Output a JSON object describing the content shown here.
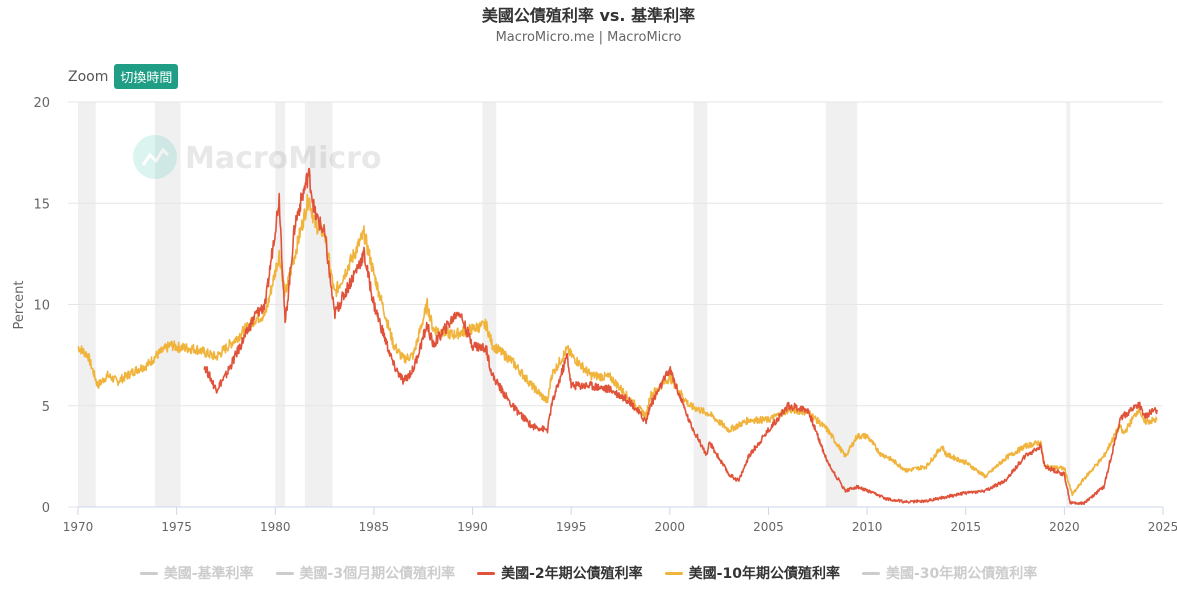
{
  "header": {
    "title": "美國公債殖利率 vs. 基準利率",
    "subtitle": "MacroMicro.me | MacroMicro"
  },
  "zoom": {
    "label": "Zoom",
    "button": "切換時間"
  },
  "watermark": {
    "text": "MacroMicro"
  },
  "colors": {
    "accent": "#1f9e85",
    "recession": "#f0f0f0"
  },
  "chart_data": {
    "type": "line",
    "ylabel": "Percent",
    "xlim": [
      1970,
      2025
    ],
    "ylim": [
      0,
      20
    ],
    "yticks": [
      0,
      5,
      10,
      15,
      20
    ],
    "xticks": [
      1970,
      1975,
      1980,
      1985,
      1990,
      1995,
      2000,
      2005,
      2010,
      2015,
      2020,
      2025
    ],
    "grid": true,
    "legend_position": "bottom",
    "recessions": [
      [
        1970.0,
        1970.9
      ],
      [
        1973.9,
        1975.2
      ],
      [
        1980.0,
        1980.5
      ],
      [
        1981.5,
        1982.9
      ],
      [
        1990.5,
        1991.2
      ],
      [
        2001.2,
        2001.9
      ],
      [
        2007.9,
        2009.5
      ],
      [
        2020.1,
        2020.3
      ]
    ],
    "legend": [
      {
        "name": "美國-基準利率",
        "color": "#cccccc",
        "visible": false
      },
      {
        "name": "美國-3個月期公債殖利率",
        "color": "#cccccc",
        "visible": false
      },
      {
        "name": "美國-2年期公債殖利率",
        "color": "#e0533a",
        "visible": true
      },
      {
        "name": "美國-10年期公債殖利率",
        "color": "#f0b43c",
        "visible": true
      },
      {
        "name": "美國-30年期公債殖利率",
        "color": "#cccccc",
        "visible": false
      }
    ],
    "series": [
      {
        "name": "美國-10年期公債殖利率",
        "color": "#f0b43c",
        "x": [
          1970,
          1970.5,
          1971,
          1971.5,
          1972,
          1973,
          1973.5,
          1974,
          1974.7,
          1975,
          1976,
          1977,
          1978,
          1979,
          1979.5,
          1980.2,
          1980.5,
          1981.0,
          1981.7,
          1982.0,
          1982.5,
          1983.0,
          1983.5,
          1984.5,
          1985,
          1986,
          1986.5,
          1987,
          1987.7,
          1988,
          1989,
          1990,
          1990.7,
          1991,
          1992,
          1993,
          1993.8,
          1994,
          1994.8,
          1995,
          1996,
          1997,
          1998,
          1998.8,
          1999,
          2000,
          2001,
          2002,
          2003,
          2004,
          2005,
          2006,
          2007,
          2008,
          2008.9,
          2009.5,
          2010,
          2010.7,
          2011,
          2012,
          2013,
          2013.8,
          2014,
          2015,
          2016,
          2017,
          2018,
          2018.8,
          2019,
          2020,
          2020.4,
          2021,
          2022,
          2022.8,
          2023,
          2023.8,
          2024,
          2024.7
        ],
        "values": [
          7.9,
          7.5,
          6.0,
          6.5,
          6.2,
          6.8,
          7.0,
          7.5,
          8.0,
          7.9,
          7.8,
          7.4,
          8.3,
          9.3,
          9.5,
          12.5,
          10.5,
          12.5,
          15.3,
          14.0,
          13.5,
          10.5,
          11.5,
          13.5,
          11.5,
          8.0,
          7.3,
          7.5,
          10.0,
          8.8,
          8.5,
          8.8,
          9.0,
          8.0,
          7.2,
          6.0,
          5.2,
          6.5,
          7.8,
          7.5,
          6.5,
          6.4,
          5.3,
          4.5,
          5.5,
          6.4,
          5.0,
          4.6,
          3.8,
          4.3,
          4.3,
          4.8,
          4.7,
          3.8,
          2.5,
          3.5,
          3.5,
          2.6,
          2.5,
          1.8,
          2.0,
          3.0,
          2.6,
          2.2,
          1.5,
          2.4,
          3.0,
          3.2,
          2.0,
          1.9,
          0.6,
          1.4,
          2.5,
          4.0,
          3.6,
          4.9,
          4.2,
          4.3
        ]
      },
      {
        "name": "美國-2年期公債殖利率",
        "color": "#e0533a",
        "x": [
          1976.4,
          1977.0,
          1977.5,
          1978,
          1979,
          1979.5,
          1980.2,
          1980.5,
          1981.0,
          1981.7,
          1982.0,
          1982.5,
          1983.0,
          1983.5,
          1984.5,
          1985,
          1986,
          1986.5,
          1987,
          1987.7,
          1988,
          1989.3,
          1990,
          1990.7,
          1991,
          1992,
          1993,
          1993.8,
          1994,
          1994.8,
          1995,
          1996,
          1997,
          1998,
          1998.8,
          1999,
          2000,
          2001,
          2001.9,
          2002,
          2003,
          2003.5,
          2004,
          2005,
          2006,
          2007,
          2008,
          2008.9,
          2009.5,
          2010,
          2011,
          2012,
          2013,
          2014,
          2015,
          2016,
          2017,
          2018,
          2018.8,
          2019,
          2020,
          2020.3,
          2021,
          2022,
          2022.8,
          2023,
          2023.8,
          2024,
          2024.7
        ],
        "values": [
          7.0,
          5.8,
          6.5,
          7.5,
          9.5,
          10.0,
          15.3,
          9.0,
          14.0,
          16.5,
          14.5,
          13.5,
          9.5,
          10.5,
          12.5,
          10.0,
          7.0,
          6.2,
          6.8,
          9.0,
          8.0,
          9.7,
          8.0,
          7.8,
          6.5,
          5.0,
          4.0,
          3.8,
          5.0,
          7.5,
          6.0,
          6.0,
          5.8,
          5.2,
          4.2,
          5.0,
          6.8,
          4.2,
          2.5,
          3.2,
          1.6,
          1.3,
          2.5,
          3.8,
          5.0,
          4.8,
          2.2,
          0.8,
          1.0,
          0.8,
          0.4,
          0.25,
          0.3,
          0.5,
          0.7,
          0.8,
          1.3,
          2.5,
          3.0,
          2.0,
          1.6,
          0.2,
          0.2,
          1.0,
          4.2,
          4.5,
          5.1,
          4.5,
          4.8
        ]
      }
    ]
  }
}
